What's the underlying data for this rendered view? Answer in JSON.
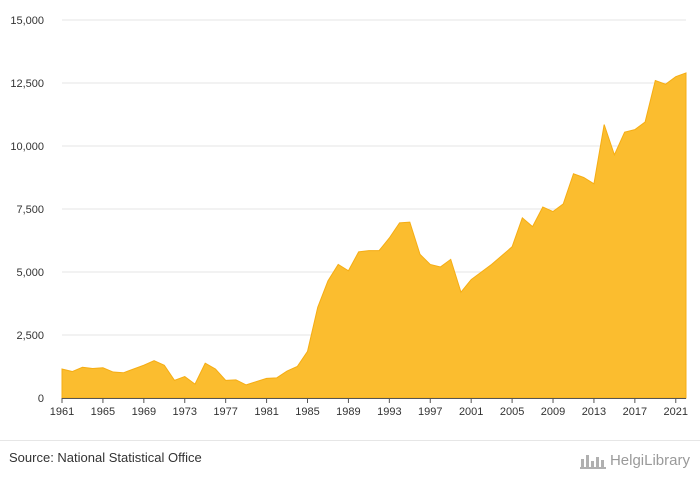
{
  "chart_data": {
    "type": "area",
    "title": "",
    "xlabel": "",
    "ylabel": "",
    "ylim": [
      0,
      15000
    ],
    "yticks": [
      0,
      2500,
      5000,
      7500,
      10000,
      12500,
      15000
    ],
    "ytick_labels": [
      "0",
      "2,500",
      "5,000",
      "7,500",
      "10,000",
      "12,500",
      "15,000"
    ],
    "xlim": [
      1961,
      2022
    ],
    "xticks": [
      1961,
      1965,
      1969,
      1973,
      1977,
      1981,
      1985,
      1989,
      1993,
      1997,
      2001,
      2005,
      2009,
      2013,
      2017,
      2021
    ],
    "xtick_labels": [
      "1961",
      "1965",
      "1969",
      "1973",
      "1977",
      "1981",
      "1985",
      "1989",
      "1993",
      "1997",
      "2001",
      "2005",
      "2009",
      "2013",
      "2017",
      "2021"
    ],
    "grid": "horizontal",
    "legend": "none",
    "color": "#fbbd2f",
    "series": [
      {
        "x": [
          1961,
          1962,
          1963,
          1964,
          1965,
          1966,
          1967,
          1968,
          1969,
          1970,
          1971,
          1972,
          1973,
          1974,
          1975,
          1976,
          1977,
          1978,
          1979,
          1980,
          1981,
          1982,
          1983,
          1984,
          1985,
          1986,
          1987,
          1988,
          1989,
          1990,
          1991,
          1992,
          1993,
          1994,
          1995,
          1996,
          1997,
          1998,
          1999,
          2000,
          2001,
          2002,
          2003,
          2004,
          2005,
          2006,
          2007,
          2008,
          2009,
          2010,
          2011,
          2012,
          2013,
          2014,
          2015,
          2016,
          2017,
          2018,
          2019,
          2020,
          2021,
          2022
        ],
        "values": [
          1150,
          1050,
          1220,
          1170,
          1200,
          1030,
          1000,
          1150,
          1300,
          1480,
          1300,
          700,
          850,
          550,
          1380,
          1150,
          700,
          720,
          520,
          650,
          780,
          800,
          1070,
          1250,
          1850,
          3600,
          4650,
          5300,
          5050,
          5800,
          5850,
          5850,
          6350,
          6950,
          6980,
          5700,
          5300,
          5200,
          5500,
          4200,
          4700,
          5000,
          5300,
          5650,
          6000,
          7150,
          6800,
          7580,
          7400,
          7700,
          8900,
          8750,
          8500,
          10850,
          9650,
          10550,
          10650,
          10950,
          12600,
          12450,
          12750,
          12900
        ]
      }
    ]
  },
  "footer": {
    "source": "Source: National Statistical Office",
    "logo_text": "HelgiLibrary"
  }
}
